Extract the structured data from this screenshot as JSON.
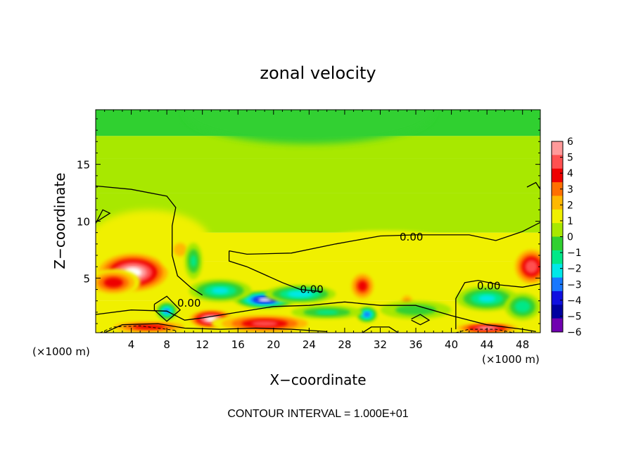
{
  "chart_data": {
    "type": "heatmap",
    "title": "zonal velocity",
    "xlabel": "X−coordinate",
    "ylabel": "Z−coordinate",
    "x_units_left": "(×1000 m)",
    "x_units_right": "(×1000 m)",
    "xlim": [
      0,
      50
    ],
    "ylim": [
      0.2,
      19.8
    ],
    "x_ticks": [
      4,
      8,
      12,
      16,
      20,
      24,
      28,
      32,
      36,
      40,
      44,
      48
    ],
    "x_tick_labels": [
      "4",
      "8",
      "12",
      "16",
      "20",
      "24",
      "28",
      "32",
      "36",
      "40",
      "44",
      "48"
    ],
    "y_ticks": [
      5,
      10,
      15
    ],
    "y_tick_labels": [
      "5",
      "10",
      "15"
    ],
    "colorbar": {
      "levels": [
        6,
        5,
        4,
        3,
        2,
        1,
        0,
        -1,
        -2,
        -3,
        -4,
        -5,
        -6
      ],
      "labels": [
        "6",
        "5",
        "4",
        "3",
        "2",
        "1",
        "0",
        "−1",
        "−2",
        "−3",
        "−4",
        "−5",
        "−6"
      ],
      "colors": [
        "#ff9a9a",
        "#ff5050",
        "#ee0000",
        "#ff7000",
        "#ffb800",
        "#f0f000",
        "#a8e800",
        "#30d030",
        "#00e888",
        "#00e8e8",
        "#1878ff",
        "#1010e0",
        "#0000a0",
        "#7000b0"
      ]
    },
    "contour_labels": [
      {
        "text": "0.00",
        "x": 35.5,
        "z": 8.6
      },
      {
        "text": "0.00",
        "x": 24.3,
        "z": 4.0
      },
      {
        "text": "0.00",
        "x": 10.5,
        "z": 2.8
      },
      {
        "text": "0.00",
        "x": 44.2,
        "z": 4.3
      }
    ],
    "zero_contours": [
      [
        [
          0,
          13.1
        ],
        [
          4,
          12.8
        ],
        [
          8,
          12.2
        ],
        [
          9,
          11.2
        ],
        [
          8.6,
          9.6
        ],
        [
          8.6,
          7.0
        ],
        [
          9.2,
          5.2
        ],
        [
          10.8,
          4.1
        ],
        [
          12,
          3.5
        ]
      ],
      [
        [
          0,
          9.8
        ],
        [
          0.8,
          11.0
        ],
        [
          1.6,
          10.7
        ],
        [
          0.8,
          10.3
        ],
        [
          0,
          9.9
        ]
      ],
      [
        [
          15,
          7.4
        ],
        [
          17,
          7.1
        ],
        [
          22,
          7.2
        ],
        [
          27,
          8.0
        ],
        [
          32,
          8.7
        ],
        [
          36,
          8.8
        ],
        [
          40,
          8.8
        ],
        [
          42,
          8.8
        ],
        [
          45,
          8.3
        ],
        [
          48,
          9.1
        ],
        [
          50,
          9.9
        ]
      ],
      [
        [
          15,
          7.4
        ],
        [
          15,
          6.5
        ],
        [
          17,
          6.0
        ],
        [
          19,
          5.3
        ],
        [
          21,
          4.6
        ],
        [
          23,
          4.0
        ],
        [
          25.5,
          3.8
        ]
      ],
      [
        [
          0,
          1.8
        ],
        [
          4,
          2.2
        ],
        [
          8,
          2.1
        ],
        [
          10,
          1.3
        ],
        [
          12,
          1.5
        ],
        [
          16,
          2.0
        ],
        [
          20,
          2.5
        ],
        [
          24,
          2.6
        ],
        [
          28,
          2.9
        ],
        [
          32,
          2.6
        ],
        [
          36,
          2.6
        ],
        [
          40,
          1.7
        ],
        [
          44,
          0.9
        ],
        [
          48,
          0.5
        ],
        [
          49.5,
          0.3
        ]
      ],
      [
        [
          40.5,
          0.5
        ],
        [
          40.5,
          3.2
        ],
        [
          41.5,
          4.6
        ],
        [
          43,
          4.8
        ],
        [
          45.5,
          4.4
        ],
        [
          48,
          4.2
        ],
        [
          50,
          4.5
        ]
      ],
      [
        [
          48.5,
          13.0
        ],
        [
          49.5,
          13.4
        ],
        [
          50,
          12.8
        ]
      ],
      [
        [
          6.6,
          2.7
        ],
        [
          8,
          3.4
        ],
        [
          9.5,
          2.2
        ],
        [
          8,
          1.2
        ],
        [
          6.6,
          2.2
        ],
        [
          6.6,
          2.7
        ]
      ],
      [
        [
          35.5,
          1.4
        ],
        [
          36.5,
          1.8
        ],
        [
          37.5,
          1.3
        ],
        [
          36.5,
          0.9
        ],
        [
          35.5,
          1.3
        ]
      ],
      [
        [
          30,
          0.2
        ],
        [
          31,
          0.7
        ],
        [
          33,
          0.7
        ],
        [
          34,
          0.2
        ]
      ],
      [
        [
          1,
          0.2
        ],
        [
          3,
          0.9
        ],
        [
          7,
          1.0
        ],
        [
          10,
          0.6
        ],
        [
          14,
          0.5
        ],
        [
          18,
          0.6
        ],
        [
          22,
          0.5
        ],
        [
          26,
          0.3
        ]
      ]
    ],
    "dashed_contours": [
      [
        [
          0.5,
          0.2
        ],
        [
          2,
          0.7
        ],
        [
          5,
          0.8
        ],
        [
          9,
          0.4
        ]
      ],
      [
        [
          40.5,
          0.2
        ],
        [
          42,
          0.5
        ],
        [
          45,
          0.5
        ],
        [
          47,
          0.2
        ]
      ]
    ],
    "blobs": [
      {
        "x": 4.2,
        "z": 5.5,
        "rx": 4.5,
        "rz": 1.9,
        "v": 6.5
      },
      {
        "x": 2.0,
        "z": 4.6,
        "rx": 3.0,
        "rz": 1.2,
        "v": 4.0
      },
      {
        "x": 13.0,
        "z": 1.4,
        "rx": 2.8,
        "rz": 0.9,
        "v": 6.5
      },
      {
        "x": 19.0,
        "z": 1.0,
        "rx": 6.0,
        "rz": 0.9,
        "v": 4.5
      },
      {
        "x": 6.0,
        "z": 0.7,
        "rx": 5.0,
        "rz": 0.6,
        "v": 4.0
      },
      {
        "x": 30.0,
        "z": 4.3,
        "rx": 1.6,
        "rz": 1.4,
        "v": 3.8
      },
      {
        "x": 35.0,
        "z": 2.8,
        "rx": 1.0,
        "rz": 1.0,
        "v": 2.5
      },
      {
        "x": 49.0,
        "z": 6.0,
        "rx": 2.2,
        "rz": 1.8,
        "v": 5.0
      },
      {
        "x": 44.0,
        "z": 0.6,
        "rx": 4.0,
        "rz": 0.5,
        "v": 5.5
      },
      {
        "x": 9.5,
        "z": 7.5,
        "rx": 2.5,
        "rz": 2.0,
        "v": 1.2
      },
      {
        "x": 32.5,
        "z": 8.0,
        "rx": 8.0,
        "rz": 1.2,
        "v": 0.3
      },
      {
        "x": 19.0,
        "z": 3.1,
        "rx": 3.5,
        "rz": 0.75,
        "v": -6.5
      },
      {
        "x": 14.0,
        "z": 3.9,
        "rx": 3.5,
        "rz": 1.0,
        "v": -3.5
      },
      {
        "x": 23.0,
        "z": 3.6,
        "rx": 4.0,
        "rz": 0.8,
        "v": -4.0
      },
      {
        "x": 11.0,
        "z": 6.5,
        "rx": 1.0,
        "rz": 1.6,
        "v": -2.5
      },
      {
        "x": 8.0,
        "z": 2.1,
        "rx": 1.2,
        "rz": 0.8,
        "v": -4.5
      },
      {
        "x": 30.5,
        "z": 1.8,
        "rx": 1.2,
        "rz": 0.7,
        "v": -5.0
      },
      {
        "x": 44.0,
        "z": 3.2,
        "rx": 3.5,
        "rz": 1.1,
        "v": -3.5
      },
      {
        "x": 48.0,
        "z": 2.5,
        "rx": 2.0,
        "rz": 1.2,
        "v": -3.0
      },
      {
        "x": 36.0,
        "z": 2.2,
        "rx": 4.0,
        "rz": 0.8,
        "v": -2.0
      },
      {
        "x": 26.0,
        "z": 2.0,
        "rx": 4.0,
        "rz": 0.6,
        "v": -2.5
      }
    ],
    "annotation": "CONTOUR INTERVAL = 1.000E+01"
  }
}
